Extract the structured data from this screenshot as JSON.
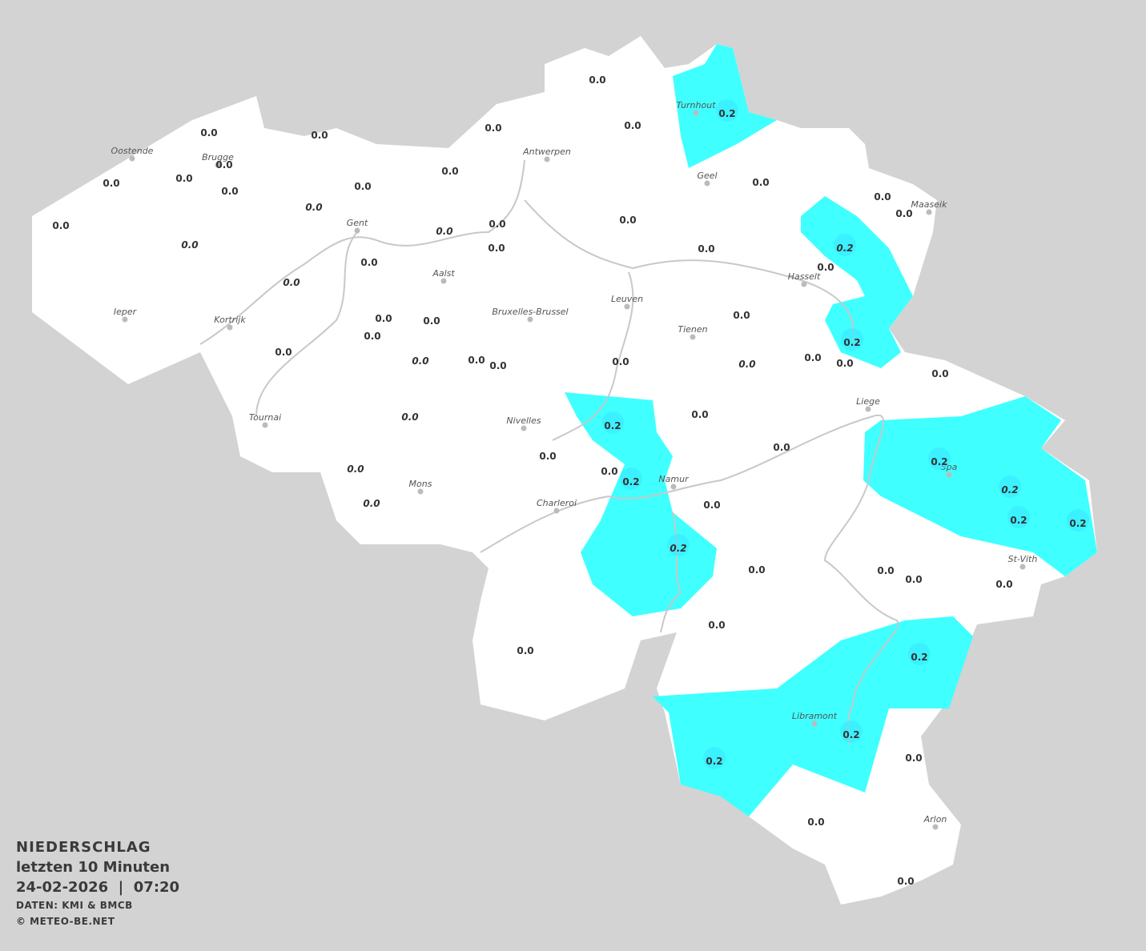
{
  "legend": {
    "title": "NIEDERSCHLAG",
    "period": "letzten 10 Minuten",
    "datetime": "24-02-2026  |  07:20",
    "source": "DATEN: KMI & BMCB",
    "copyright": "© METEO-BE.NET"
  },
  "colors": {
    "background": "#d3d3d3",
    "land": "#ffffff",
    "precip_0_2": "#40ffff",
    "rivers": "#c8c8c8",
    "text": "#333333"
  },
  "cities": [
    "Oostende",
    "Brugge",
    "Antwerpen",
    "Turnhout",
    "Geel",
    "Maaseik",
    "Gent",
    "Aalst",
    "Hasselt",
    "Leuven",
    "Ieper",
    "Bruxelles-Brussel",
    "Kortrijk",
    "Tienen",
    "Liege",
    "Tournai",
    "Nivelles",
    "Spa",
    "Namur",
    "Mons",
    "Charleroi",
    "St-Vith",
    "Libramont",
    "Arlon"
  ],
  "stations": [
    "0.0",
    "0.0",
    "0.2",
    "0.0",
    "0.0",
    "0.0",
    "0.0",
    "0.0",
    "0.0",
    "0.0",
    "0.0",
    "0.0",
    "0.0",
    "0.0",
    "0.0",
    "0.0",
    "0.0",
    "0.0",
    "0.0",
    "0.0",
    "0.0",
    "0.0",
    "0.2",
    "0.0",
    "0.0",
    "0.0",
    "0.0",
    "0.0",
    "0.0",
    "0.0",
    "0.0",
    "0.2",
    "0.0",
    "0.0",
    "0.0",
    "0.0",
    "0.0",
    "0.0",
    "0.0",
    "0.0",
    "0.0",
    "0.0",
    "0.2",
    "0.0",
    "0.0",
    "0.0",
    "0.0",
    "0.0",
    "0.2",
    "0.2",
    "0.2",
    "0.0",
    "0.0",
    "0.2",
    "0.2",
    "0.2",
    "0.0",
    "0.0",
    "0.0",
    "0.0",
    "0.0",
    "0.0",
    "0.2",
    "0.2",
    "0.2",
    "0.0",
    "0.0",
    "0.0"
  ]
}
